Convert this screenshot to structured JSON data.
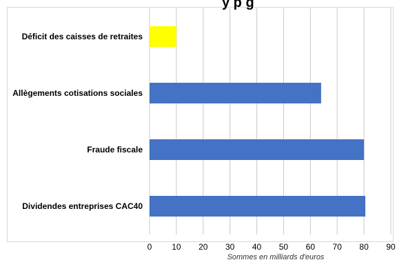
{
  "chart_data": {
    "type": "bar",
    "orientation": "horizontal",
    "title_fragment": "y p     g",
    "categories": [
      "Déficit des caisses de retraites",
      "Allègements cotisations sociales",
      "Fraude fiscale",
      "Dividendes entreprises CAC40"
    ],
    "values": [
      10,
      64,
      80,
      80.5
    ],
    "colors": [
      "#ffff00",
      "#4472c4",
      "#4472c4",
      "#4472c4"
    ],
    "xlabel": "Sommes en milliards d'euros",
    "xlim": [
      0,
      90
    ],
    "xticks": [
      0,
      10,
      20,
      30,
      40,
      50,
      60,
      70,
      80,
      90
    ],
    "grid": true,
    "legend": "none"
  }
}
